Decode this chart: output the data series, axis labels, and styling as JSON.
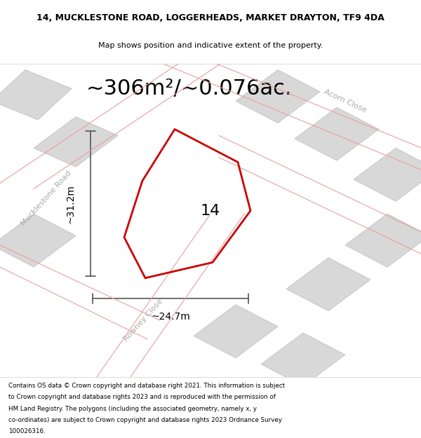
{
  "title_line1": "14, MUCKLESTONE ROAD, LOGGERHEADS, MARKET DRAYTON, TF9 4DA",
  "title_line2": "Map shows position and indicative extent of the property.",
  "area_text": "~306m²/~0.076ac.",
  "label_14": "14",
  "dim_vertical": "~31.2m",
  "dim_horizontal": "~24.7m",
  "road_mucklestone": "Mucklestone Road",
  "road_rowney": "Rowney Close",
  "road_acorn": "Acorn Close",
  "footer_lines": [
    "Contains OS data © Crown copyright and database right 2021. This information is subject",
    "to Crown copyright and database rights 2023 and is reproduced with the permission of",
    "HM Land Registry. The polygons (including the associated geometry, namely x, y",
    "co-ordinates) are subject to Crown copyright and database rights 2023 Ordnance Survey",
    "100026316."
  ],
  "bg_color": "#efefef",
  "road_fill": "#ffffff",
  "block_fill": "#d8d8d8",
  "poly_color": "#cc0000",
  "road_line_color": "#e8a0a0",
  "dim_line_color": "#555555",
  "title_fontsize": 9,
  "subtitle_fontsize": 8,
  "area_fontsize": 22,
  "label_fontsize": 16,
  "dim_fontsize": 10,
  "road_fontsize": 8,
  "footer_fontsize": 6.3
}
